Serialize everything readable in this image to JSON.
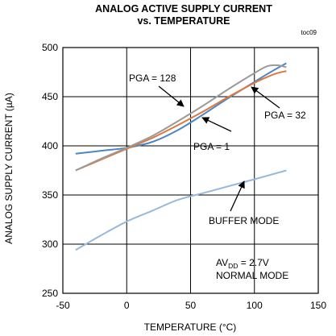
{
  "chart_data": {
    "type": "line",
    "title_line1": "ANALOG ACTIVE SUPPLY CURRENT",
    "title_line2": "vs. TEMPERATURE",
    "figure_id": "toc09",
    "xlabel": "TEMPERATURE (°C)",
    "ylabel": "ANALOG SUPPLY CURRENT (µA)",
    "xlim": [
      -50,
      150
    ],
    "ylim": [
      250,
      500
    ],
    "xticks": [
      -50,
      0,
      50,
      100,
      150
    ],
    "yticks": [
      250,
      300,
      350,
      400,
      450,
      500
    ],
    "grid": true,
    "series": [
      {
        "name": "PGA = 128",
        "color": "#9a9a9a",
        "x": [
          -40,
          -20,
          0,
          20,
          40,
          60,
          80,
          100,
          110,
          118,
          125
        ],
        "y": [
          375,
          387,
          398,
          410,
          425,
          441,
          458,
          474,
          481,
          482,
          480
        ]
      },
      {
        "name": "PGA = 32",
        "color": "#e0773a",
        "x": [
          -40,
          -20,
          0,
          20,
          40,
          60,
          80,
          100,
          110,
          118,
          125
        ],
        "y": [
          375,
          386,
          397,
          408,
          421,
          435,
          450,
          464,
          470,
          474,
          476
        ]
      },
      {
        "name": "PGA = 1",
        "color": "#4a86c5",
        "x": [
          -40,
          -20,
          0,
          20,
          40,
          60,
          80,
          100,
          110,
          118,
          125
        ],
        "y": [
          392,
          395,
          398,
          404,
          416,
          432,
          449,
          465,
          473,
          479,
          484
        ]
      },
      {
        "name": "BUFFER MODE",
        "color": "#98b8dc",
        "x": [
          -40,
          -20,
          0,
          20,
          40,
          60,
          80,
          100,
          125
        ],
        "y": [
          294,
          309,
          323,
          334,
          345,
          352,
          359,
          366,
          375
        ]
      }
    ],
    "annotations": [
      {
        "text": "PGA = 128"
      },
      {
        "text": "PGA = 32"
      },
      {
        "text": "PGA = 1"
      },
      {
        "text": "BUFFER MODE"
      },
      {
        "text": "AVDD = 2.7V",
        "main": "AV",
        "sub": "DD",
        "rest": " = 2.7V"
      },
      {
        "text": "NORMAL MODE"
      }
    ]
  }
}
